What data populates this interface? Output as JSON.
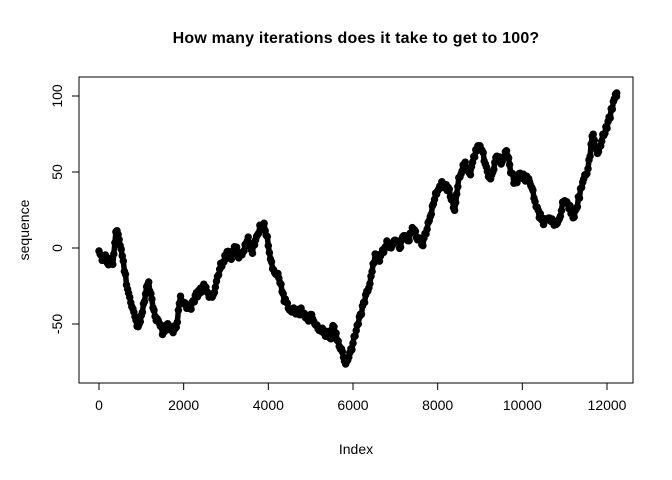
{
  "chart_data": {
    "type": "scatter",
    "title": "How many iterations does it take to get to 100?",
    "xlabel": "Index",
    "ylabel": "sequence",
    "x_ticks": [
      0,
      2000,
      4000,
      6000,
      8000,
      10000,
      12000
    ],
    "y_ticks": [
      -50,
      0,
      50,
      100
    ],
    "xlim": [
      0,
      12230
    ],
    "ylim": [
      -80,
      102
    ],
    "marker": "open-circle",
    "series_color": "#000000",
    "keypoints": [
      [
        0,
        -2
      ],
      [
        70,
        -8
      ],
      [
        140,
        -4
      ],
      [
        210,
        -13
      ],
      [
        270,
        -7
      ],
      [
        330,
        -11
      ],
      [
        390,
        10
      ],
      [
        440,
        12
      ],
      [
        500,
        3
      ],
      [
        560,
        -6
      ],
      [
        620,
        -18
      ],
      [
        680,
        -29
      ],
      [
        780,
        -37
      ],
      [
        900,
        -52
      ],
      [
        1000,
        -45
      ],
      [
        1080,
        -33
      ],
      [
        1160,
        -21
      ],
      [
        1250,
        -34
      ],
      [
        1330,
        -46
      ],
      [
        1430,
        -51
      ],
      [
        1520,
        -56
      ],
      [
        1620,
        -50
      ],
      [
        1720,
        -54
      ],
      [
        1830,
        -52
      ],
      [
        1910,
        -32
      ],
      [
        2030,
        -37
      ],
      [
        2150,
        -40
      ],
      [
        2280,
        -32
      ],
      [
        2400,
        -28
      ],
      [
        2500,
        -25
      ],
      [
        2610,
        -32
      ],
      [
        2720,
        -29
      ],
      [
        2800,
        -18
      ],
      [
        2870,
        -11
      ],
      [
        2950,
        -8
      ],
      [
        3050,
        -2
      ],
      [
        3130,
        -6
      ],
      [
        3210,
        1
      ],
      [
        3330,
        -7
      ],
      [
        3430,
        -1
      ],
      [
        3520,
        6
      ],
      [
        3610,
        -3
      ],
      [
        3720,
        8
      ],
      [
        3870,
        17
      ],
      [
        3940,
        12
      ],
      [
        4040,
        -7
      ],
      [
        4160,
        -16
      ],
      [
        4250,
        -19
      ],
      [
        4330,
        -30
      ],
      [
        4420,
        -36
      ],
      [
        4510,
        -39
      ],
      [
        4650,
        -43
      ],
      [
        4800,
        -41
      ],
      [
        4910,
        -47
      ],
      [
        5030,
        -44
      ],
      [
        5150,
        -52
      ],
      [
        5280,
        -54
      ],
      [
        5390,
        -57
      ],
      [
        5460,
        -60
      ],
      [
        5530,
        -52
      ],
      [
        5650,
        -61
      ],
      [
        5750,
        -69
      ],
      [
        5820,
        -77
      ],
      [
        5880,
        -73
      ],
      [
        5970,
        -67
      ],
      [
        6050,
        -57
      ],
      [
        6160,
        -46
      ],
      [
        6280,
        -34
      ],
      [
        6400,
        -22
      ],
      [
        6470,
        -10
      ],
      [
        6550,
        -4
      ],
      [
        6620,
        -7
      ],
      [
        6700,
        -2
      ],
      [
        6800,
        3
      ],
      [
        6900,
        -2
      ],
      [
        7000,
        5
      ],
      [
        7100,
        1
      ],
      [
        7200,
        8
      ],
      [
        7310,
        6
      ],
      [
        7420,
        13
      ],
      [
        7530,
        6
      ],
      [
        7650,
        3
      ],
      [
        7800,
        18
      ],
      [
        7980,
        38
      ],
      [
        8120,
        43
      ],
      [
        8280,
        37
      ],
      [
        8400,
        26
      ],
      [
        8520,
        48
      ],
      [
        8640,
        56
      ],
      [
        8760,
        47
      ],
      [
        8870,
        61
      ],
      [
        8960,
        69
      ],
      [
        9050,
        64
      ],
      [
        9160,
        52
      ],
      [
        9240,
        43
      ],
      [
        9390,
        61
      ],
      [
        9500,
        56
      ],
      [
        9640,
        64
      ],
      [
        9720,
        52
      ],
      [
        9830,
        42
      ],
      [
        9940,
        48
      ],
      [
        10050,
        46
      ],
      [
        10160,
        44
      ],
      [
        10240,
        38
      ],
      [
        10310,
        30
      ],
      [
        10400,
        22
      ],
      [
        10510,
        17
      ],
      [
        10630,
        21
      ],
      [
        10770,
        15
      ],
      [
        10880,
        21
      ],
      [
        11000,
        33
      ],
      [
        11110,
        27
      ],
      [
        11220,
        20
      ],
      [
        11320,
        31
      ],
      [
        11420,
        42
      ],
      [
        11530,
        50
      ],
      [
        11600,
        60
      ],
      [
        11660,
        75
      ],
      [
        11730,
        68
      ],
      [
        11790,
        63
      ],
      [
        11860,
        70
      ],
      [
        11930,
        76
      ],
      [
        12010,
        81
      ],
      [
        12100,
        90
      ],
      [
        12170,
        96
      ],
      [
        12230,
        102
      ]
    ]
  }
}
